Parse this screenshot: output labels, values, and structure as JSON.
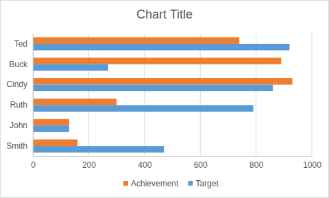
{
  "chart_data": {
    "type": "bar",
    "title": "Chart Title",
    "orientation": "horizontal",
    "categories": [
      "Ted",
      "Buck",
      "Cindy",
      "Ruth",
      "John",
      "Smith"
    ],
    "series": [
      {
        "name": "Achievement",
        "color": "#ed7d31",
        "values": [
          740,
          890,
          930,
          300,
          130,
          160
        ]
      },
      {
        "name": "Target",
        "color": "#5b9bd5",
        "values": [
          920,
          270,
          860,
          790,
          130,
          470
        ]
      }
    ],
    "xlim": [
      0,
      1000
    ],
    "xticks": [
      0,
      200,
      400,
      600,
      800,
      1000
    ],
    "grid": true,
    "legend": "bottom"
  }
}
